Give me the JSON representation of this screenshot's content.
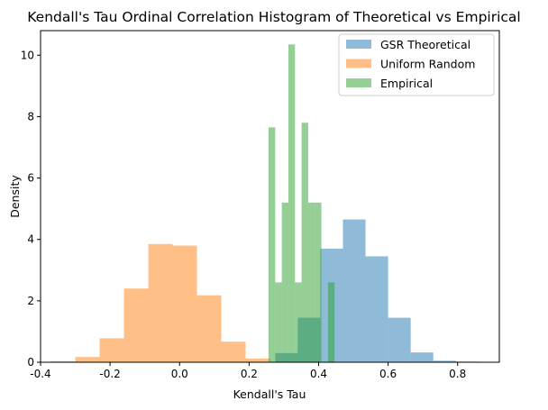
{
  "chart_data": {
    "type": "bar",
    "title": "Kendall's Tau Ordinal Correlation Histogram of Theoretical vs Empirical",
    "xlabel": "Kendall's Tau",
    "ylabel": "Density",
    "xlim": [
      -0.4,
      0.92
    ],
    "ylim": [
      0,
      10.8
    ],
    "xticks": [
      "-0.4",
      "-0.2",
      "0.0",
      "0.2",
      "0.4",
      "0.6",
      "0.8"
    ],
    "yticks": [
      "0",
      "2",
      "4",
      "6",
      "8",
      "10"
    ],
    "grid": false,
    "legend_position": "top-right",
    "series": [
      {
        "name": "GSR Theoretical",
        "color": "#1f77b4",
        "opacity": 0.5,
        "bins": [
          {
            "x0": 0.275,
            "x1": 0.34,
            "y": 0.3
          },
          {
            "x0": 0.34,
            "x1": 0.405,
            "y": 1.45
          },
          {
            "x0": 0.405,
            "x1": 0.47,
            "y": 3.7
          },
          {
            "x0": 0.47,
            "x1": 0.535,
            "y": 4.65
          },
          {
            "x0": 0.535,
            "x1": 0.6,
            "y": 3.45
          },
          {
            "x0": 0.6,
            "x1": 0.665,
            "y": 1.45
          },
          {
            "x0": 0.665,
            "x1": 0.73,
            "y": 0.32
          },
          {
            "x0": 0.73,
            "x1": 0.795,
            "y": 0.05
          },
          {
            "x0": 0.795,
            "x1": 0.86,
            "y": 0.02
          }
        ]
      },
      {
        "name": "Uniform Random",
        "color": "#ff7f0e",
        "opacity": 0.5,
        "bins": [
          {
            "x0": -0.37,
            "x1": -0.3,
            "y": 0.03
          },
          {
            "x0": -0.3,
            "x1": -0.23,
            "y": 0.17
          },
          {
            "x0": -0.23,
            "x1": -0.16,
            "y": 0.78
          },
          {
            "x0": -0.16,
            "x1": -0.09,
            "y": 2.4
          },
          {
            "x0": -0.09,
            "x1": -0.02,
            "y": 3.85
          },
          {
            "x0": -0.02,
            "x1": 0.05,
            "y": 3.8
          },
          {
            "x0": 0.05,
            "x1": 0.12,
            "y": 2.18
          },
          {
            "x0": 0.12,
            "x1": 0.19,
            "y": 0.67
          },
          {
            "x0": 0.19,
            "x1": 0.26,
            "y": 0.12
          },
          {
            "x0": 0.26,
            "x1": 0.33,
            "y": 0.02
          }
        ]
      },
      {
        "name": "Empirical",
        "color": "#2ca02c",
        "opacity": 0.5,
        "bins": [
          {
            "x0": 0.256,
            "x1": 0.275,
            "y": 7.65
          },
          {
            "x0": 0.275,
            "x1": 0.294,
            "y": 2.6
          },
          {
            "x0": 0.294,
            "x1": 0.313,
            "y": 5.2
          },
          {
            "x0": 0.313,
            "x1": 0.332,
            "y": 10.35
          },
          {
            "x0": 0.332,
            "x1": 0.351,
            "y": 2.6
          },
          {
            "x0": 0.351,
            "x1": 0.37,
            "y": 7.8
          },
          {
            "x0": 0.37,
            "x1": 0.389,
            "y": 5.2
          },
          {
            "x0": 0.389,
            "x1": 0.408,
            "y": 5.2
          },
          {
            "x0": 0.408,
            "x1": 0.427,
            "y": 0
          },
          {
            "x0": 0.427,
            "x1": 0.446,
            "y": 2.6
          }
        ]
      }
    ]
  }
}
